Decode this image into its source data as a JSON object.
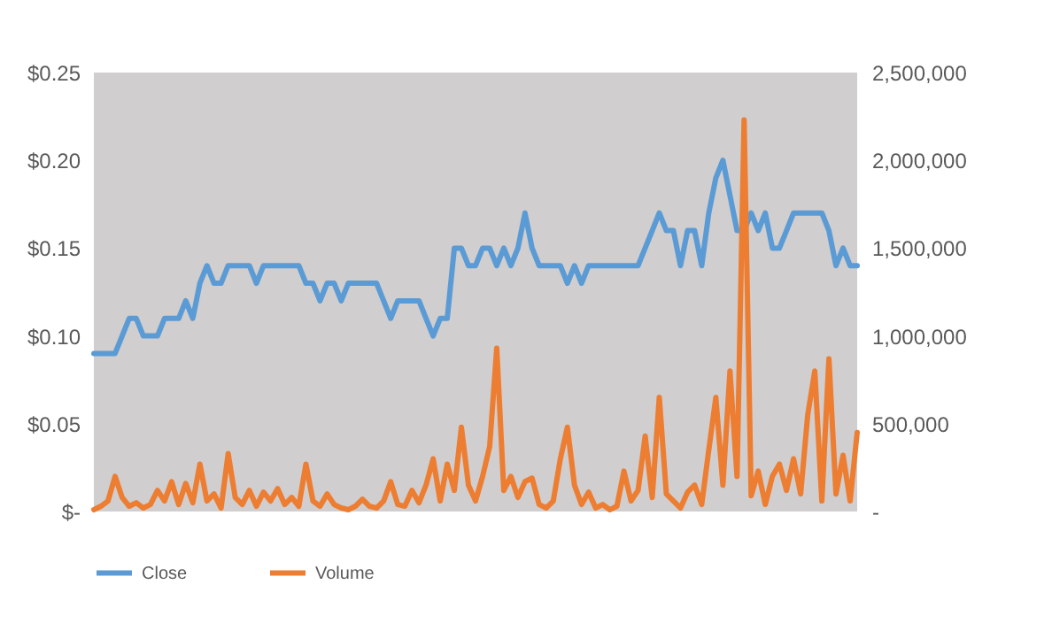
{
  "chart_data": {
    "type": "line",
    "categories": [
      null,
      null,
      null,
      null,
      null,
      null,
      null,
      null,
      null,
      null,
      null,
      null,
      null,
      null,
      null,
      null,
      null,
      null,
      null,
      null,
      null,
      null,
      null,
      null,
      null,
      null,
      null,
      null,
      null,
      null,
      null,
      null,
      null,
      null,
      null,
      null,
      null,
      null,
      null,
      null,
      null,
      null,
      null,
      null,
      null,
      null,
      null,
      null,
      null,
      null,
      null,
      null,
      null,
      null,
      null,
      null,
      null,
      null,
      null,
      null,
      null,
      null,
      null,
      null,
      null,
      null,
      null,
      null,
      null,
      null,
      null,
      null,
      null,
      null,
      null,
      null,
      null,
      null,
      null,
      null,
      null,
      null,
      null,
      null,
      null,
      null,
      null,
      null,
      null,
      null,
      null,
      null,
      null,
      null,
      null,
      null,
      null,
      null,
      null,
      null,
      null,
      null,
      null,
      null,
      null,
      null,
      null,
      null,
      null
    ],
    "series": [
      {
        "name": "Close",
        "color": "#5b9bd5",
        "values": [
          0.09,
          0.09,
          0.09,
          0.09,
          0.1,
          0.11,
          0.11,
          0.1,
          0.1,
          0.1,
          0.11,
          0.11,
          0.11,
          0.12,
          0.11,
          0.13,
          0.14,
          0.13,
          0.13,
          0.14,
          0.14,
          0.14,
          0.14,
          0.13,
          0.14,
          0.14,
          0.14,
          0.14,
          0.14,
          0.14,
          0.13,
          0.13,
          0.12,
          0.13,
          0.13,
          0.12,
          0.13,
          0.13,
          0.13,
          0.13,
          0.13,
          0.12,
          0.11,
          0.12,
          0.12,
          0.12,
          0.12,
          0.11,
          0.1,
          0.11,
          0.11,
          0.15,
          0.15,
          0.14,
          0.14,
          0.15,
          0.15,
          0.14,
          0.15,
          0.14,
          0.15,
          0.17,
          0.15,
          0.14,
          0.14,
          0.14,
          0.14,
          0.13,
          0.14,
          0.13,
          0.14,
          0.14,
          0.14,
          0.14,
          0.14,
          0.14,
          0.14,
          0.14,
          0.15,
          0.16,
          0.17,
          0.16,
          0.16,
          0.14,
          0.16,
          0.16,
          0.14,
          0.17,
          0.19,
          0.2,
          0.18,
          0.16,
          0.16,
          0.17,
          0.16,
          0.17,
          0.15,
          0.15,
          0.16,
          0.17,
          0.17,
          0.17,
          0.17,
          0.17,
          0.16,
          0.14,
          0.15,
          0.14,
          0.14
        ]
      },
      {
        "name": "Volume",
        "color": "#ed7d31",
        "axis": "y2",
        "values": [
          10000,
          30000,
          60000,
          200000,
          80000,
          30000,
          50000,
          20000,
          40000,
          120000,
          60000,
          170000,
          40000,
          160000,
          50000,
          270000,
          60000,
          100000,
          20000,
          330000,
          80000,
          40000,
          120000,
          30000,
          110000,
          60000,
          130000,
          40000,
          80000,
          30000,
          270000,
          60000,
          30000,
          100000,
          40000,
          20000,
          10000,
          30000,
          70000,
          30000,
          20000,
          60000,
          170000,
          40000,
          30000,
          120000,
          50000,
          150000,
          300000,
          60000,
          270000,
          120000,
          480000,
          150000,
          60000,
          200000,
          370000,
          930000,
          120000,
          200000,
          80000,
          170000,
          190000,
          40000,
          20000,
          60000,
          300000,
          480000,
          150000,
          40000,
          110000,
          20000,
          40000,
          10000,
          30000,
          230000,
          60000,
          120000,
          430000,
          80000,
          650000,
          100000,
          60000,
          20000,
          110000,
          150000,
          40000,
          350000,
          650000,
          150000,
          800000,
          200000,
          2230000,
          90000,
          230000,
          40000,
          200000,
          270000,
          120000,
          300000,
          100000,
          550000,
          800000,
          60000,
          870000,
          100000,
          320000,
          60000,
          450000
        ]
      }
    ],
    "ylim": [
      0,
      0.25
    ],
    "yticks": [
      {
        "value": 0,
        "label": "$-"
      },
      {
        "value": 0.05,
        "label": "$0.05"
      },
      {
        "value": 0.1,
        "label": "$0.10"
      },
      {
        "value": 0.15,
        "label": "$0.15"
      },
      {
        "value": 0.2,
        "label": "$0.20"
      },
      {
        "value": 0.25,
        "label": "$0.25"
      }
    ],
    "y2lim": [
      0,
      2500000
    ],
    "y2ticks": [
      {
        "value": 0,
        "label": "-"
      },
      {
        "value": 500000,
        "label": "500,000"
      },
      {
        "value": 1000000,
        "label": "1,000,000"
      },
      {
        "value": 1500000,
        "label": "1,500,000"
      },
      {
        "value": 2000000,
        "label": "2,000,000"
      },
      {
        "value": 2500000,
        "label": "2,500,000"
      }
    ],
    "grid": false,
    "legend": "bottom",
    "line_style": "solid",
    "marker": "none"
  }
}
